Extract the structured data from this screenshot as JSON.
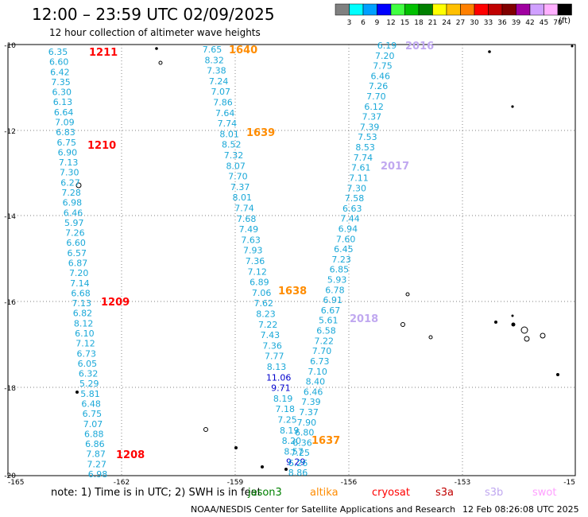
{
  "header": {
    "title": "12:00 – 23:59 UTC 02/09/2025",
    "subtitle": "12 hour collection of altimeter wave heights",
    "units": "(ft)"
  },
  "legend": {
    "values": [
      "3",
      "6",
      "9",
      "12",
      "15",
      "18",
      "21",
      "24",
      "27",
      "30",
      "33",
      "36",
      "39",
      "42",
      "45",
      "70"
    ],
    "colors": [
      "#808080",
      "#00ffff",
      "#00a0ff",
      "#0000ff",
      "#40ff40",
      "#00c000",
      "#008000",
      "#ffff00",
      "#ffc000",
      "#ff8000",
      "#ff0000",
      "#c00000",
      "#800000",
      "#a000a0",
      "#d0a0ff",
      "#ffb0ff",
      "#000000"
    ]
  },
  "map": {
    "lat_ticks": [
      "-10",
      "-12",
      "-14",
      "-16",
      "-18",
      "-20"
    ],
    "lon_ticks": [
      "-165",
      "-162",
      "-159",
      "-156",
      "-153",
      "-15"
    ],
    "x_range": [
      -165,
      -150
    ],
    "y_range": [
      -10,
      -20
    ]
  },
  "tracks": [
    {
      "color": "#1aa8d8",
      "values": [
        "6.35",
        "6.60",
        "6.42",
        "7.35",
        "6.30",
        "6.13",
        "6.64",
        "7.09",
        "6.83",
        "6.75",
        "6.90",
        "7.13",
        "7.30",
        "6.27",
        "7.28",
        "6.98",
        "6.46",
        "5.97",
        "7.26",
        "6.60",
        "6.57",
        "6.87",
        "7.20",
        "7.14",
        "6.68",
        "7.13",
        "6.82",
        "8.12",
        "6.10",
        "7.12",
        "6.73",
        "6.05",
        "6.32",
        "5.29",
        "5.81",
        "6.48",
        "6.75",
        "7.07",
        "6.88",
        "6.86",
        "7.87",
        "7.27",
        "6.98"
      ]
    },
    {
      "color": "#1aa8d8",
      "values": [
        "7.65",
        "8.32",
        "7.38",
        "7.24",
        "7.07",
        "7.86",
        "7.64",
        "7.74",
        "8.01",
        "8.52",
        "7.32",
        "8.07",
        "7.70",
        "7.37",
        "8.01",
        "7.74",
        "7.68",
        "7.49",
        "7.63",
        "7.93",
        "7.36",
        "7.12",
        "6.89",
        "7.06",
        "7.62",
        "8.23",
        "7.22",
        "7.43",
        "7.36",
        "7.77",
        "8.13",
        "11.06",
        "9.71",
        "8.19",
        "7.18",
        "7.25",
        "8.19",
        "8.20",
        "8.57",
        "9.29",
        "8.86"
      ]
    },
    {
      "color": "#1aa8d8",
      "values": [
        "6.19",
        "7.20",
        "7.75",
        "6.46",
        "7.26",
        "7.70",
        "6.12",
        "7.37",
        "7.39",
        "7.53",
        "8.53",
        "7.74",
        "7.61",
        "7.11",
        "7.30",
        "7.58",
        "6.63",
        "7.44",
        "6.94",
        "7.60",
        "6.45",
        "7.23",
        "6.85",
        "5.93",
        "6.78",
        "6.91",
        "6.67",
        "5.61",
        "6.58",
        "7.22",
        "7.70",
        "6.73",
        "7.10",
        "8.40",
        "6.46",
        "7.39",
        "7.37",
        "7.90",
        "6.80",
        "6.36",
        "7.25",
        "6.26"
      ]
    }
  ],
  "times": [
    {
      "label": "1211",
      "color": "#ff0000"
    },
    {
      "label": "1210",
      "color": "#ff0000"
    },
    {
      "label": "1209",
      "color": "#ff0000"
    },
    {
      "label": "1208",
      "color": "#ff0000"
    },
    {
      "label": "1640",
      "color": "#ff8c00"
    },
    {
      "label": "1639",
      "color": "#ff8c00"
    },
    {
      "label": "1638",
      "color": "#ff8c00"
    },
    {
      "label": "1637",
      "color": "#ff8c00"
    },
    {
      "label": "2016",
      "color": "#c0a8f0"
    },
    {
      "label": "2017",
      "color": "#c0a8f0"
    },
    {
      "label": "2018",
      "color": "#c0a8f0"
    }
  ],
  "footer": {
    "note": "note:  1) Time is in UTC;  2) SWH is in feet",
    "satellites": [
      {
        "name": "jason3",
        "color": "#008000"
      },
      {
        "name": "altika",
        "color": "#ff8c00"
      },
      {
        "name": "cryosat",
        "color": "#ff0000"
      },
      {
        "name": "s3a",
        "color": "#c00000"
      },
      {
        "name": "s3b",
        "color": "#c0a8f0"
      },
      {
        "name": "swot",
        "color": "#ffa0ff"
      }
    ],
    "credit": "NOAA/NESDIS Center for Satellite Applications and Research",
    "stamp": "12 Feb 08:26:08 UTC 2025"
  }
}
